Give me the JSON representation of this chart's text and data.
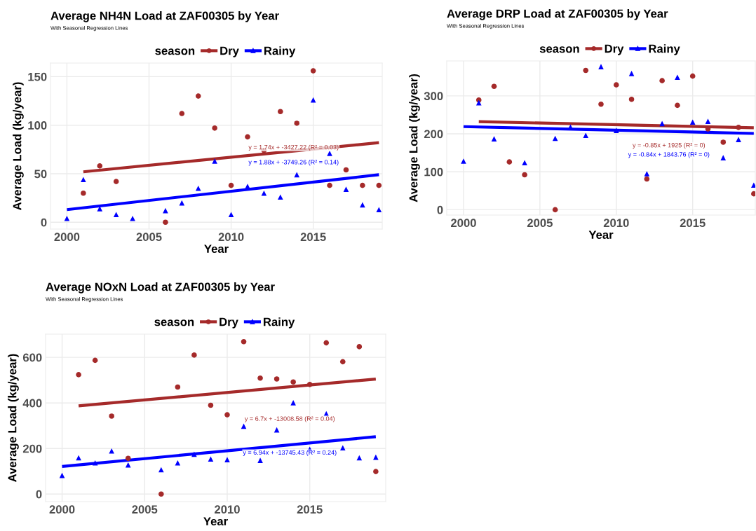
{
  "chart_data": [
    {
      "type": "scatter",
      "title": "Average NH4N Load at ZAF00305 by Year",
      "subtitle": "With Seasonal Regression Lines",
      "xlabel": "Year",
      "ylabel": "Average Load (kg/year)",
      "legend_title": "season",
      "legend": "top",
      "grid": true,
      "xlim": [
        1999,
        2019.2
      ],
      "xticks": [
        2000,
        2005,
        2010,
        2015
      ],
      "ylim": [
        -7,
        164
      ],
      "yticks": [
        0,
        50,
        100,
        150
      ],
      "series": [
        {
          "name": "Dry",
          "marker": "circle",
          "color": "#a52a2a",
          "x": [
            2001,
            2002,
            2003,
            2006,
            2007,
            2008,
            2009,
            2010,
            2011,
            2012,
            2013,
            2014,
            2015,
            2016,
            2017,
            2018,
            2019
          ],
          "values": [
            30,
            58,
            42,
            0,
            112,
            130,
            97,
            38,
            88,
            74,
            114,
            102,
            156,
            38,
            54,
            38,
            38
          ]
        },
        {
          "name": "Rainy",
          "marker": "triangle",
          "color": "#0000ff",
          "x": [
            2000,
            2001,
            2002,
            2003,
            2004,
            2006,
            2007,
            2008,
            2009,
            2010,
            2011,
            2012,
            2013,
            2014,
            2015,
            2016,
            2017,
            2018,
            2019
          ],
          "values": [
            4,
            44,
            14,
            8,
            4,
            12,
            20,
            35,
            63,
            8,
            37,
            30,
            26,
            49,
            126,
            71,
            34,
            18,
            13
          ]
        },
        {
          "type": "line",
          "color": "#a52a2a",
          "x": [
            2001,
            2019
          ],
          "values": [
            52,
            82
          ]
        },
        {
          "type": "line",
          "color": "#0000ff",
          "x": [
            2000,
            2019
          ],
          "values": [
            13,
            49
          ]
        }
      ],
      "annotations": [
        "y = 1.74x + -3427.22 (R² = 0.03)",
        "y = 1.88x + -3749.26 (R² = 0.14)"
      ]
    },
    {
      "type": "scatter",
      "title": "Average DRP Load at ZAF00305 by Year",
      "subtitle": "With Seasonal Regression Lines",
      "xlabel": "Year",
      "ylabel": "Average Load (kg/year)",
      "legend_title": "season",
      "legend": "top",
      "grid": true,
      "xlim": [
        1998.9,
        2019.1
      ],
      "xticks": [
        2000,
        2005,
        2010,
        2015
      ],
      "ylim": [
        -14,
        392
      ],
      "yticks": [
        0,
        100,
        200,
        300
      ],
      "series": [
        {
          "name": "Dry",
          "marker": "circle",
          "color": "#a52a2a",
          "x": [
            2001,
            2002,
            2003,
            2004,
            2006,
            2008,
            2009,
            2010,
            2011,
            2012,
            2013,
            2014,
            2015,
            2016,
            2017,
            2018,
            2019
          ],
          "values": [
            289,
            325,
            126,
            92,
            0,
            367,
            278,
            329,
            291,
            81,
            340,
            275,
            352,
            213,
            178,
            217,
            42
          ]
        },
        {
          "name": "Rainy",
          "marker": "triangle",
          "color": "#0000ff",
          "x": [
            2000,
            2001,
            2002,
            2004,
            2006,
            2007,
            2008,
            2009,
            2010,
            2011,
            2012,
            2013,
            2014,
            2015,
            2016,
            2017,
            2018,
            2019
          ],
          "values": [
            128,
            282,
            187,
            124,
            188,
            218,
            196,
            377,
            209,
            359,
            95,
            227,
            349,
            231,
            233,
            137,
            185,
            65
          ]
        },
        {
          "type": "line",
          "color": "#a52a2a",
          "x": [
            2001,
            2019
          ],
          "values": [
            232,
            216
          ]
        },
        {
          "type": "line",
          "color": "#0000ff",
          "x": [
            2000,
            2019
          ],
          "values": [
            219,
            201
          ]
        }
      ],
      "annotations": [
        "y = -0.85x + 1925 (R² = 0)",
        "y = -0.84x + 1843.76 (R² = 0)"
      ]
    },
    {
      "type": "scatter",
      "title": "Average NOxN Load at ZAF00305 by Year",
      "subtitle": "With Seasonal Regression Lines",
      "xlabel": "Year",
      "ylabel": "Average Load (kg/year)",
      "legend_title": "season",
      "legend": "top",
      "grid": true,
      "xlim": [
        1999,
        2019.6
      ],
      "xticks": [
        2000,
        2005,
        2010,
        2015
      ],
      "ylim": [
        -33,
        702
      ],
      "yticks": [
        0,
        200,
        400,
        600
      ],
      "series": [
        {
          "name": "Dry",
          "marker": "circle",
          "color": "#a52a2a",
          "x": [
            2001,
            2002,
            2003,
            2004,
            2006,
            2007,
            2008,
            2009,
            2010,
            2011,
            2012,
            2013,
            2014,
            2015,
            2016,
            2017,
            2018,
            2019
          ],
          "values": [
            524,
            587,
            342,
            157,
            0,
            470,
            610,
            390,
            348,
            669,
            509,
            505,
            492,
            481,
            664,
            581,
            647,
            99
          ]
        },
        {
          "name": "Rainy",
          "marker": "triangle",
          "color": "#0000ff",
          "x": [
            2000,
            2001,
            2002,
            2003,
            2004,
            2006,
            2007,
            2008,
            2009,
            2010,
            2011,
            2012,
            2013,
            2014,
            2015,
            2016,
            2017,
            2018,
            2019
          ],
          "values": [
            82,
            159,
            137,
            189,
            128,
            107,
            137,
            175,
            154,
            151,
            298,
            148,
            282,
            401,
            197,
            353,
            203,
            159,
            162
          ]
        },
        {
          "type": "line",
          "color": "#a52a2a",
          "x": [
            2001,
            2019
          ],
          "values": [
            387,
            505
          ]
        },
        {
          "type": "line",
          "color": "#0000ff",
          "x": [
            2000,
            2019
          ],
          "values": [
            121,
            252
          ]
        }
      ],
      "annotations": [
        "y = 6.7x + -13008.58 (R² = 0.04)",
        "y = 6.94x + -13745.43 (R² = 0.24)"
      ]
    }
  ]
}
